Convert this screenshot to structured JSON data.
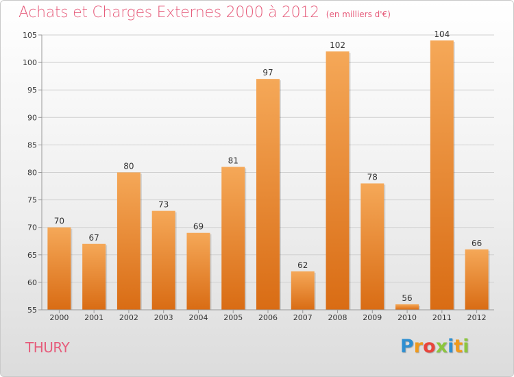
{
  "title": "Achats et Charges Externes 2000 à 2012",
  "unit": "(en milliers d'€)",
  "commune": "THURY",
  "logo": {
    "letters": [
      "P",
      "r",
      "o",
      "x",
      "i",
      "t",
      "i"
    ],
    "colors": [
      "#2e8fd1",
      "#f09a1d",
      "#e8453c",
      "#8cc63e",
      "#2e8fd1",
      "#f09a1d",
      "#8cc63e"
    ]
  },
  "colors": {
    "title": "#e65c7b",
    "bar_top": "#f5a858",
    "bar_bottom": "#d96c14",
    "grid": "#cfcfcf",
    "text": "#333333"
  },
  "chart_data": {
    "type": "bar",
    "categories": [
      "2000",
      "2001",
      "2002",
      "2003",
      "2004",
      "2005",
      "2006",
      "2007",
      "2008",
      "2009",
      "2010",
      "2011",
      "2012"
    ],
    "values": [
      70,
      67,
      80,
      73,
      69,
      81,
      97,
      62,
      102,
      78,
      56,
      104,
      66
    ],
    "ylim": [
      55,
      105
    ],
    "yticks": [
      55,
      60,
      65,
      70,
      75,
      80,
      85,
      90,
      95,
      100,
      105
    ],
    "grid": true,
    "xlabel": "",
    "ylabel": ""
  }
}
